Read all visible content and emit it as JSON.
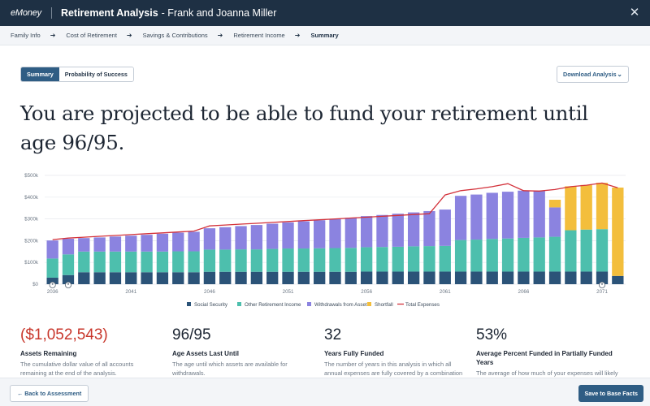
{
  "header": {
    "logo": "eMoney",
    "title": "Retirement Analysis",
    "client": "- Frank and Joanna Miller",
    "close_icon": "close-icon"
  },
  "breadcrumbs": [
    {
      "label": "Family Info",
      "active": false
    },
    {
      "label": "Cost of Retirement",
      "active": false
    },
    {
      "label": "Savings & Contributions",
      "active": false
    },
    {
      "label": "Retirement Income",
      "active": false
    },
    {
      "label": "Summary",
      "active": true
    }
  ],
  "tabs": [
    {
      "label": "Summary",
      "active": true
    },
    {
      "label": "Probability of Success",
      "active": false
    }
  ],
  "download_label": "Download Analysis",
  "headline": "You are projected to be able to fund your retirement until age 96/95.",
  "colors": {
    "social_security": "#2b5378",
    "other_income": "#4dbfad",
    "withdrawals": "#8b83e0",
    "shortfall": "#f3be3c",
    "total_expenses": "#d3313a"
  },
  "chart_data": {
    "type": "bar",
    "stacked": true,
    "x": [
      2036,
      2037,
      2038,
      2039,
      2040,
      2041,
      2042,
      2043,
      2044,
      2045,
      2046,
      2047,
      2048,
      2049,
      2050,
      2051,
      2052,
      2053,
      2054,
      2055,
      2056,
      2057,
      2058,
      2059,
      2060,
      2061,
      2062,
      2063,
      2064,
      2065,
      2066,
      2067,
      2068,
      2069,
      2070,
      2071,
      2072
    ],
    "x_tick_labels": [
      "2036",
      "2041",
      "2046",
      "2051",
      "2056",
      "2061",
      "2066",
      "2071"
    ],
    "y_tick_labels": [
      "$0",
      "$100k",
      "$200k",
      "$300k",
      "$400k",
      "$500k"
    ],
    "ylim": [
      0,
      500000
    ],
    "grid": true,
    "legend_position": "bottom",
    "series": [
      {
        "name": "Social Security",
        "key": "social_security",
        "values": [
          30000,
          42000,
          55000,
          55000,
          55000,
          55000,
          55000,
          55000,
          55000,
          55000,
          57000,
          57000,
          57000,
          57000,
          57000,
          57000,
          57000,
          57000,
          57000,
          57000,
          58000,
          58000,
          58000,
          58000,
          58000,
          58000,
          58000,
          58000,
          58000,
          58000,
          58000,
          58000,
          58000,
          58000,
          58000,
          58000,
          38000
        ]
      },
      {
        "name": "Other Retirement Income",
        "key": "other_income",
        "values": [
          88000,
          95000,
          95000,
          95000,
          95000,
          95000,
          95000,
          95000,
          96000,
          96000,
          102000,
          102000,
          103000,
          103000,
          105000,
          107000,
          107000,
          108000,
          109000,
          110000,
          112000,
          113000,
          114000,
          116000,
          117000,
          118000,
          145000,
          147000,
          150000,
          152000,
          155000,
          157000,
          160000,
          190000,
          193000,
          195000,
          0
        ]
      },
      {
        "name": "Withdrawals from Assets",
        "key": "withdrawals",
        "values": [
          83000,
          72000,
          62000,
          65000,
          69000,
          73000,
          77000,
          82000,
          86000,
          90000,
          98000,
          103000,
          107000,
          112000,
          116000,
          120000,
          125000,
          129000,
          134000,
          138000,
          143000,
          147000,
          152000,
          156000,
          161000,
          167000,
          203000,
          207000,
          212000,
          215000,
          217000,
          215000,
          135000,
          0,
          0,
          0,
          0
        ]
      },
      {
        "name": "Shortfall",
        "key": "shortfall",
        "values": [
          0,
          0,
          0,
          0,
          0,
          0,
          0,
          0,
          0,
          0,
          0,
          0,
          0,
          0,
          0,
          0,
          0,
          0,
          0,
          0,
          0,
          0,
          0,
          0,
          0,
          0,
          0,
          0,
          0,
          0,
          0,
          0,
          35000,
          202000,
          205000,
          213000,
          406000
        ]
      }
    ],
    "line": {
      "name": "Total Expenses",
      "key": "total_expenses",
      "values": [
        205000,
        212000,
        216000,
        220000,
        224000,
        228000,
        232000,
        236000,
        240000,
        244000,
        268000,
        272000,
        276000,
        280000,
        284000,
        288000,
        292000,
        296000,
        300000,
        304000,
        308000,
        312000,
        316000,
        320000,
        324000,
        410000,
        430000,
        438000,
        448000,
        462000,
        430000,
        428000,
        435000,
        448000,
        455000,
        465000,
        443000
      ]
    },
    "age_markers": [
      {
        "index": 0,
        "type": "person"
      },
      {
        "index": 1,
        "type": "person"
      },
      {
        "index": 35,
        "type": "person-alt"
      }
    ]
  },
  "stats": [
    {
      "value": "($1,052,543)",
      "negative": true,
      "label": "Assets Remaining",
      "desc": "The cumulative dollar value of all accounts remaining at the end of the analysis."
    },
    {
      "value": "96/95",
      "negative": false,
      "label": "Age Assets Last Until",
      "desc": "The age until which assets are available for withdrawals."
    },
    {
      "value": "32",
      "negative": false,
      "label": "Years Fully Funded",
      "desc": "The number of years in this analysis in which all annual expenses are fully covered by a combination of"
    },
    {
      "value": "53%",
      "negative": false,
      "label": "Average Percent Funded in Partially Funded Years",
      "desc": "The average of how much of your expenses will likely"
    }
  ],
  "footer": {
    "back_label": "Back to Assessment",
    "save_label": "Save to Base Facts"
  }
}
